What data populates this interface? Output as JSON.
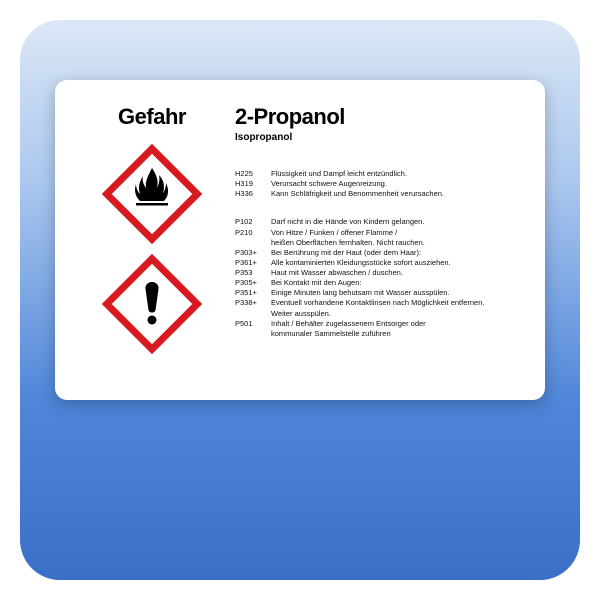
{
  "signal_word": "Gefahr",
  "chemical_name": "2-Propanol",
  "synonym": "Isopropanol",
  "pictogram_colors": {
    "border": "#d71920",
    "fill": "#ffffff",
    "symbol": "#000000"
  },
  "h_statements": [
    {
      "code": "H225",
      "text": "Flüssigkeit und Dampf leicht entzündlich."
    },
    {
      "code": "H319",
      "text": "Verursacht schwere Augenreizung."
    },
    {
      "code": "H336",
      "text": "Kann Schläfrigkeit und Benommenheit verursachen."
    }
  ],
  "p_statements": [
    {
      "code": "P102",
      "text": "Darf nicht in die Hände von Kindern gelangen."
    },
    {
      "code": "P210",
      "text": "Von Hitze / Funken / offener Flamme /",
      "cont": "heißen Oberflächen fernhalten. Nicht rauchen."
    },
    {
      "code": "P303+",
      "text": "Bei Berührung mit der Haut (oder dem Haar):"
    },
    {
      "code": "P361+",
      "text": "Alle kontaminierten Kleidungsstücke sofort ausziehen."
    },
    {
      "code": "P353",
      "text": "Haut mit Wasser abwaschen / duschen."
    },
    {
      "code": "P305+",
      "text": "Bei Kontakt mit den Augen:"
    },
    {
      "code": "P351+",
      "text": "Einige Minuten lang behutsam mit Wasser ausspülen."
    },
    {
      "code": "P338+",
      "text": "Eventuell vorhandene Kontaktlinsen nach Möglichkeit entfernen.",
      "cont": "Weiter ausspülen."
    },
    {
      "code": "P501",
      "text": "Inhalt / Behälter zugelassenem Entsorger oder",
      "cont": "kommunaler Sammelstelle zuführen"
    }
  ]
}
